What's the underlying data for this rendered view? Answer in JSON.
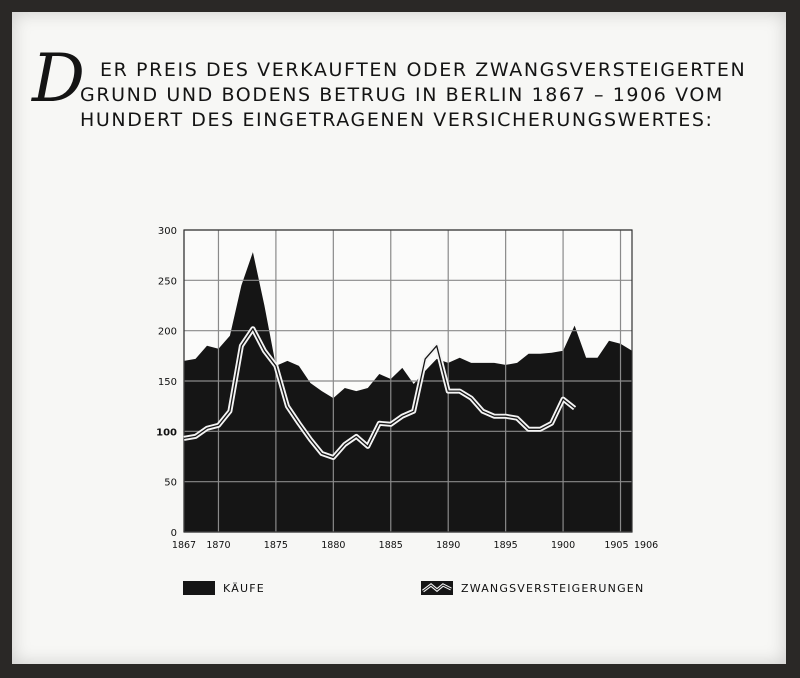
{
  "chart_data": {
    "type": "area",
    "title": "Der Preis des verkauften oder zwangsversteigerten Grund und Bodens betrug in Berlin 1867 – 1906 vom Hundert des eingetragenen Versicherungswertes:",
    "title_lines": [
      "er Preis des verkauften oder zwangsversteigerten",
      "Grund und Bodens betrug in Berlin 1867 – 1906 vom",
      "Hundert des eingetragenen Versicherungswertes:"
    ],
    "title_initial": "D",
    "xlabel": "",
    "ylabel": "",
    "xlim": [
      1867,
      1906
    ],
    "ylim": [
      0,
      300
    ],
    "x_ticks": [
      1867,
      1870,
      1875,
      1880,
      1885,
      1890,
      1895,
      1900,
      1905,
      1906
    ],
    "y_ticks": [
      0,
      50,
      100,
      150,
      200,
      250,
      300
    ],
    "grid": true,
    "legend_position": "bottom",
    "series": [
      {
        "name": "Käufe",
        "style": "filled-area",
        "color": "#151515",
        "x": [
          1867,
          1868,
          1869,
          1870,
          1871,
          1872,
          1873,
          1874,
          1875,
          1876,
          1877,
          1878,
          1879,
          1880,
          1881,
          1882,
          1883,
          1884,
          1885,
          1886,
          1887,
          1888,
          1889,
          1890,
          1891,
          1892,
          1893,
          1894,
          1895,
          1896,
          1897,
          1898,
          1899,
          1900,
          1901,
          1902,
          1903,
          1904,
          1905,
          1906
        ],
        "values": [
          170,
          172,
          185,
          182,
          195,
          245,
          278,
          225,
          165,
          170,
          165,
          148,
          140,
          133,
          143,
          140,
          143,
          157,
          152,
          163,
          147,
          160,
          172,
          168,
          173,
          168,
          168,
          168,
          166,
          168,
          177,
          177,
          178,
          180,
          205,
          173,
          173,
          190,
          187,
          180
        ]
      },
      {
        "name": "Zwangsversteigerungen",
        "style": "double-line",
        "color": "#f4f4f4",
        "x": [
          1867,
          1868,
          1869,
          1870,
          1871,
          1872,
          1873,
          1874,
          1875,
          1876,
          1877,
          1878,
          1879,
          1880,
          1881,
          1882,
          1883,
          1884,
          1885,
          1886,
          1887,
          1888,
          1889,
          1890,
          1891,
          1892,
          1893,
          1894,
          1895,
          1896,
          1897,
          1898,
          1899,
          1900,
          1901
        ],
        "values": [
          93,
          95,
          103,
          106,
          120,
          185,
          202,
          180,
          165,
          125,
          108,
          92,
          78,
          74,
          87,
          95,
          85,
          108,
          107,
          115,
          120,
          172,
          185,
          140,
          140,
          133,
          120,
          115,
          115,
          113,
          102,
          102,
          108,
          132,
          123
        ]
      }
    ]
  },
  "legend": {
    "kaeufe_label": "Käufe",
    "zwang_label": "Zwangsversteigerungen"
  }
}
